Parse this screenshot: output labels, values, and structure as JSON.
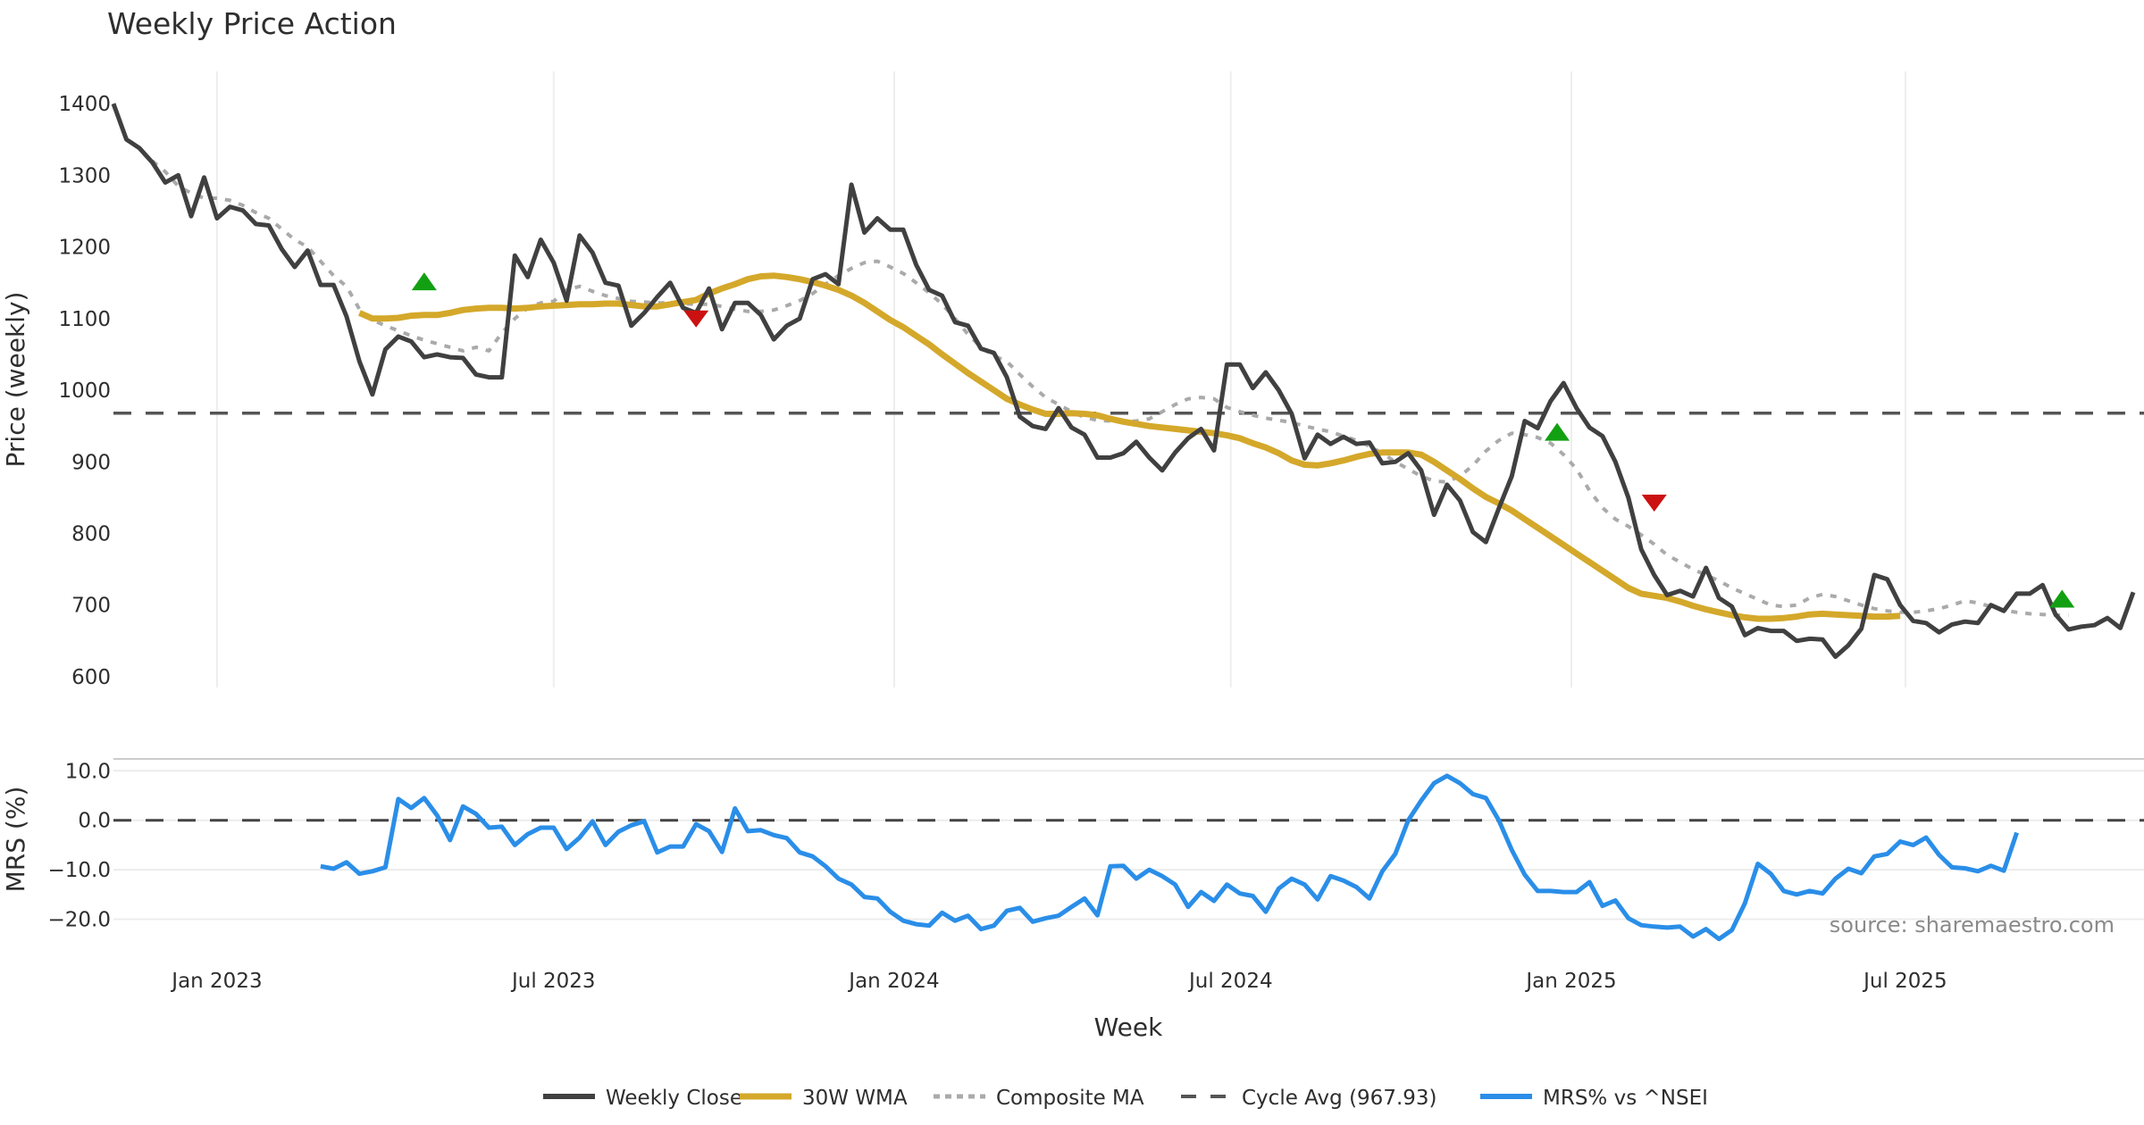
{
  "chart_data": {
    "type": "line",
    "title": "Weekly Price Action",
    "xlabel": "Week",
    "source": "source: sharemaestro.com",
    "x_ticks": [
      {
        "label": "Jan 2023",
        "week": 8
      },
      {
        "label": "Jul 2023",
        "week": 34
      },
      {
        "label": "Jan 2024",
        "week": 60.3
      },
      {
        "label": "Jul 2024",
        "week": 86.3
      },
      {
        "label": "Jan 2025",
        "week": 112.6
      },
      {
        "label": "Jul 2025",
        "week": 138.4
      }
    ],
    "x_range": [
      0,
      156
    ],
    "price_panel": {
      "ylabel": "Price (weekly)",
      "ylim": [
        585,
        1445
      ],
      "y_ticks": [
        1400,
        1300,
        1200,
        1100,
        1000,
        900,
        800,
        700,
        600
      ],
      "cycle_avg": 967.93,
      "series": [
        {
          "name": "Weekly Close",
          "color": "#404040",
          "start_week": 0,
          "values": [
            1400,
            1350,
            1338,
            1318,
            1290,
            1300,
            1243,
            1297,
            1240,
            1256,
            1251,
            1232,
            1230,
            1197,
            1172,
            1195,
            1147,
            1147,
            1103,
            1040,
            994,
            1057,
            1075,
            1068,
            1046,
            1050,
            1046,
            1045,
            1022,
            1018,
            1018,
            1188,
            1158,
            1210,
            1178,
            1125,
            1216,
            1192,
            1150,
            1146,
            1090,
            1108,
            1130,
            1150,
            1115,
            1108,
            1142,
            1085,
            1122,
            1122,
            1105,
            1071,
            1090,
            1100,
            1155,
            1162,
            1148,
            1287,
            1220,
            1240,
            1224,
            1224,
            1175,
            1140,
            1132,
            1095,
            1090,
            1058,
            1052,
            1018,
            963,
            950,
            946,
            975,
            948,
            938,
            906,
            906,
            912,
            928,
            906,
            888,
            913,
            933,
            946,
            916,
            1036,
            1036,
            1003,
            1025,
            1000,
            967,
            905,
            938,
            925,
            935,
            925,
            927,
            898,
            900,
            912,
            888,
            826,
            868,
            846,
            802,
            788,
            835,
            880,
            957,
            947,
            985,
            1010,
            975,
            948,
            936,
            900,
            850,
            778,
            742,
            714,
            720,
            712,
            752,
            710,
            698,
            658,
            668,
            664,
            664,
            650,
            653,
            652,
            628,
            644,
            667,
            742,
            736,
            700,
            678,
            675,
            662,
            673,
            677,
            675,
            700,
            692,
            716,
            716,
            728,
            687,
            666,
            670,
            672,
            682,
            668,
            718
          ]
        },
        {
          "name": "30W WMA",
          "color": "#D4A82A",
          "start_week": 19,
          "values": [
            1108,
            1100,
            1100,
            1101,
            1104,
            1105,
            1105,
            1108,
            1112,
            1114,
            1115,
            1115,
            1114,
            1115,
            1117,
            1118,
            1119,
            1120,
            1120,
            1121,
            1121,
            1119,
            1117,
            1117,
            1120,
            1123,
            1126,
            1135,
            1142,
            1148,
            1155,
            1159,
            1160,
            1158,
            1155,
            1151,
            1146,
            1140,
            1132,
            1122,
            1110,
            1098,
            1088,
            1076,
            1064,
            1050,
            1037,
            1024,
            1012,
            1000,
            988,
            980,
            973,
            967,
            967,
            968,
            967,
            965,
            960,
            956,
            953,
            950,
            948,
            946,
            944,
            942,
            940,
            937,
            933,
            926,
            920,
            912,
            902,
            896,
            895,
            898,
            902,
            907,
            911,
            913,
            913,
            913,
            910,
            900,
            888,
            876,
            863,
            851,
            842,
            832,
            820,
            808,
            796,
            784,
            772,
            760,
            748,
            736,
            724,
            716,
            713,
            710,
            705,
            699,
            694,
            690,
            686,
            683,
            681,
            681,
            682,
            684,
            687,
            688,
            687,
            686,
            685,
            684,
            684,
            685
          ]
        },
        {
          "name": "Composite MA",
          "color": "#AAAAAA",
          "start_week": 3,
          "values": [
            1320,
            1305,
            1285,
            1275,
            1268,
            1268,
            1265,
            1258,
            1248,
            1240,
            1225,
            1210,
            1200,
            1180,
            1160,
            1145,
            1113,
            1098,
            1090,
            1083,
            1076,
            1070,
            1065,
            1060,
            1055,
            1060,
            1055,
            1080,
            1100,
            1115,
            1122,
            1124,
            1140,
            1145,
            1138,
            1132,
            1128,
            1124,
            1123,
            1122,
            1122,
            1121,
            1120,
            1120,
            1117,
            1113,
            1110,
            1110,
            1112,
            1118,
            1125,
            1135,
            1148,
            1160,
            1170,
            1178,
            1180,
            1172,
            1163,
            1150,
            1136,
            1120,
            1100,
            1078,
            1060,
            1048,
            1040,
            1022,
            1005,
            990,
            980,
            970,
            962,
            958,
            957,
            956,
            957,
            960,
            970,
            980,
            988,
            990,
            988,
            976,
            970,
            965,
            961,
            958,
            955,
            950,
            946,
            942,
            936,
            930,
            922,
            912,
            900,
            890,
            880,
            873,
            872,
            880,
            895,
            915,
            930,
            940,
            938,
            934,
            926,
            910,
            890,
            860,
            836,
            820,
            810,
            798,
            785,
            770,
            760,
            750,
            742,
            734,
            724,
            716,
            708,
            700,
            698,
            700,
            710,
            715,
            712,
            706,
            700,
            695,
            692,
            690,
            690,
            692,
            695,
            700,
            706,
            703,
            698,
            693,
            690,
            688,
            687,
            686,
            686
          ]
        }
      ],
      "signals": [
        {
          "type": "buy",
          "week": 24,
          "value": 1142,
          "color": "#12A012"
        },
        {
          "type": "sell",
          "week": 45,
          "value": 1100,
          "color": "#CC1111"
        },
        {
          "type": "buy",
          "week": 111.5,
          "value": 932,
          "color": "#12A012"
        },
        {
          "type": "sell",
          "week": 119,
          "value": 843,
          "color": "#CC1111"
        },
        {
          "type": "buy",
          "week": 150.5,
          "value": 699,
          "color": "#12A012"
        }
      ]
    },
    "mrs_panel": {
      "ylabel": "MRS (%)",
      "ylim": [
        -25.5,
        11.5
      ],
      "y_ticks": [
        10.0,
        0.0,
        -10.0,
        -20.0
      ],
      "reference": 0.0,
      "series": {
        "name": "MRS% vs ^NSEI",
        "color": "#2A8EE8",
        "start_week": 16,
        "values": [
          -9.3,
          -9.8,
          -8.5,
          -10.8,
          -10.3,
          -9.5,
          4.3,
          2.5,
          4.5,
          1.0,
          -4.0,
          2.8,
          1.3,
          -1.5,
          -1.3,
          -5.0,
          -2.8,
          -1.5,
          -1.5,
          -5.8,
          -3.5,
          -0.2,
          -5.0,
          -2.3,
          -1.0,
          -0.2,
          -6.5,
          -5.3,
          -5.3,
          -0.8,
          -2.2,
          -6.4,
          2.4,
          -2.2,
          -2.0,
          -3.0,
          -3.6,
          -6.5,
          -7.3,
          -9.3,
          -11.8,
          -13.0,
          -15.5,
          -15.8,
          -18.5,
          -20.3,
          -21.0,
          -21.3,
          -18.7,
          -20.3,
          -19.3,
          -22.0,
          -21.3,
          -18.3,
          -17.7,
          -20.5,
          -19.8,
          -19.3,
          -17.5,
          -15.8,
          -19.2,
          -9.3,
          -9.2,
          -11.8,
          -10.0,
          -11.3,
          -13.0,
          -17.5,
          -14.5,
          -16.3,
          -13.0,
          -14.8,
          -15.3,
          -18.5,
          -13.8,
          -11.8,
          -13.0,
          -16.0,
          -11.3,
          -12.2,
          -13.5,
          -15.8,
          -10.3,
          -6.8,
          0.0,
          4.0,
          7.5,
          9.0,
          7.5,
          5.3,
          4.5,
          0.0,
          -6.0,
          -11.0,
          -14.3,
          -14.3,
          -14.5,
          -14.5,
          -12.5,
          -17.3,
          -16.2,
          -19.8,
          -21.2,
          -21.5,
          -21.7,
          -21.5,
          -23.5,
          -22.0,
          -24.0,
          -22.2,
          -16.8,
          -8.8,
          -10.8,
          -14.3,
          -15.0,
          -14.3,
          -14.8,
          -11.8,
          -9.8,
          -10.7,
          -7.3,
          -6.8,
          -4.3,
          -5.0,
          -3.5,
          -7.0,
          -9.5,
          -9.7,
          -10.3,
          -9.2,
          -10.2,
          -2.5
        ]
      }
    },
    "legend": {
      "placement": "bottom-center",
      "entries": [
        {
          "label": "Weekly Close",
          "style": "solid",
          "color": "#404040"
        },
        {
          "label": "30W WMA",
          "style": "solid-thick",
          "color": "#D4A82A"
        },
        {
          "label": "Composite MA",
          "style": "dotted",
          "color": "#AAAAAA"
        },
        {
          "label": "Cycle Avg (967.93)",
          "style": "dashed",
          "color": "#555555"
        },
        {
          "label": "MRS% vs ^NSEI",
          "style": "solid",
          "color": "#2A8EE8"
        }
      ]
    }
  }
}
